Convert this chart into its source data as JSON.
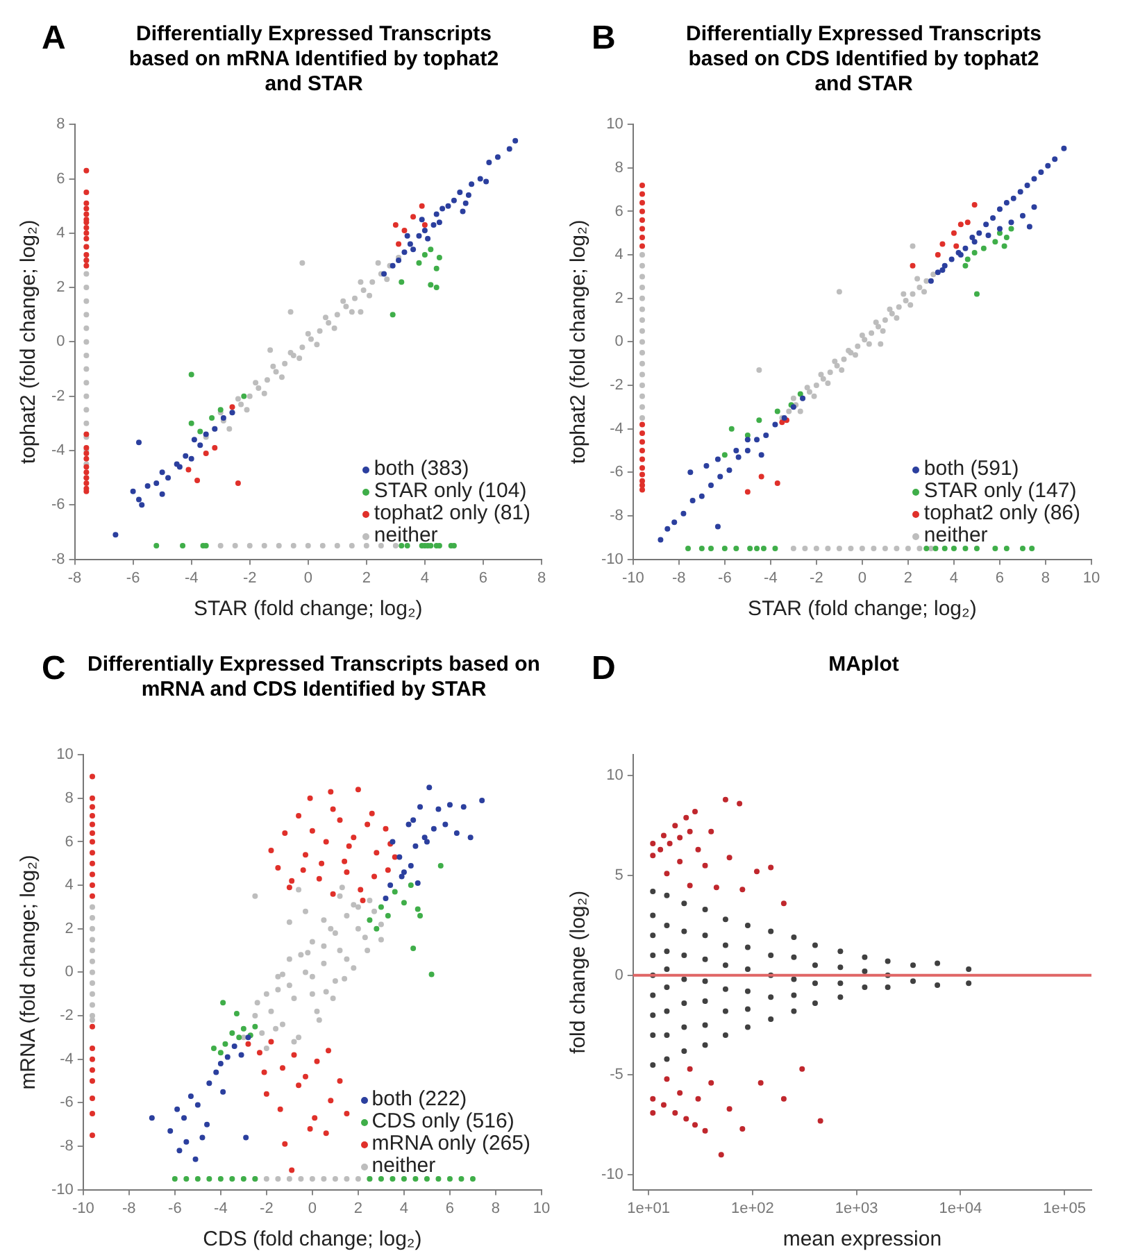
{
  "chart_data": [
    {
      "type": "scatter",
      "title": "Differentially Expressed Transcripts based on mRNA Identified by tophat2 and STAR",
      "xlabel": "STAR (fold change; log₂)",
      "ylabel": "tophat2 (fold change; log₂)",
      "xlim": [
        -8,
        8
      ],
      "ylim": [
        -8,
        8
      ],
      "xticks": [
        -8,
        -6,
        -4,
        -2,
        0,
        2,
        4,
        6,
        8
      ],
      "yticks": [
        -8,
        -6,
        -4,
        -2,
        0,
        2,
        4,
        6,
        8
      ],
      "grid": false,
      "legend": "bottom right",
      "marker": "circle",
      "annotations": [
        "A"
      ],
      "series": [
        {
          "name": "both (383)",
          "color": "#2b3f9e",
          "x": [
            2.6,
            2.9,
            3.1,
            3.3,
            3.5,
            3.6,
            3.8,
            4.0,
            4.1,
            4.3,
            4.5,
            4.6,
            4.8,
            5.0,
            5.2,
            5.4,
            5.6,
            5.9,
            6.2,
            6.5,
            6.9,
            7.1,
            3.4,
            3.9,
            4.4,
            5.5,
            6.1,
            5.3,
            -6.0,
            -5.8,
            -5.5,
            -5.2,
            -5.0,
            -4.8,
            -4.5,
            -4.2,
            -4.0,
            -3.7,
            -3.5,
            -3.2,
            -2.9,
            -2.6,
            -5.7,
            -5.0,
            -4.4,
            -3.9,
            -6.6,
            -5.8
          ],
          "values": [
            2.5,
            2.8,
            3.0,
            3.3,
            3.6,
            3.4,
            3.9,
            4.1,
            3.8,
            4.3,
            4.4,
            4.9,
            5.0,
            5.2,
            5.5,
            5.1,
            5.8,
            6.0,
            6.6,
            6.8,
            7.1,
            7.4,
            3.9,
            4.5,
            4.7,
            5.4,
            5.9,
            4.8,
            -5.5,
            -5.8,
            -5.3,
            -5.2,
            -4.8,
            -5.0,
            -4.5,
            -4.2,
            -4.3,
            -3.8,
            -3.4,
            -3.2,
            -2.8,
            -2.6,
            -6.0,
            -5.6,
            -4.6,
            -3.6,
            -7.1,
            -3.7
          ]
        },
        {
          "name": "STAR only (104)",
          "color": "#3fae49",
          "x": [
            3.8,
            4.0,
            4.2,
            4.4,
            4.5,
            4.2,
            4.4,
            2.9,
            3.2,
            -4.0,
            -3.0,
            -3.7,
            -4.0,
            -3.3,
            -2.2,
            -5.2,
            -4.3,
            -3.6,
            -3.5,
            3.2,
            3.4,
            3.9,
            4.0,
            4.1,
            4.2,
            4.4,
            4.5,
            4.9,
            5.0
          ],
          "values": [
            2.9,
            3.2,
            3.4,
            2.7,
            3.1,
            2.1,
            2.0,
            1.0,
            2.2,
            -1.2,
            -2.5,
            -3.3,
            -3.0,
            -2.8,
            -2.0,
            -7.5,
            -7.5,
            -7.5,
            -7.5,
            -7.5,
            -7.5,
            -7.5,
            -7.5,
            -7.5,
            -7.5,
            -7.5,
            -7.5,
            -7.5,
            -7.5
          ]
        },
        {
          "name": "tophat2 only (81)",
          "color": "#e0302a",
          "x": [
            -7.6,
            -7.6,
            -7.6,
            -7.6,
            -7.6,
            -7.6,
            -7.6,
            -7.6,
            -7.6,
            -7.6,
            -7.6,
            -7.6,
            -7.6,
            -7.6,
            -7.6,
            -7.6,
            -7.6,
            -7.6,
            -7.6,
            -7.6,
            -7.6,
            -7.6,
            -7.6,
            -7.6,
            3.0,
            3.3,
            3.6,
            3.9,
            3.1,
            4.0,
            -3.8,
            -2.4,
            -3.5,
            -4.1,
            -3.2,
            -2.6
          ],
          "values": [
            6.3,
            5.5,
            5.1,
            4.9,
            4.7,
            4.5,
            4.4,
            4.2,
            4.0,
            3.8,
            3.5,
            3.2,
            3.0,
            2.8,
            -3.4,
            -3.9,
            -4.1,
            -4.3,
            -4.6,
            -4.8,
            -5.0,
            -5.2,
            -5.4,
            -5.5,
            4.3,
            4.1,
            4.6,
            5.0,
            3.6,
            4.3,
            -5.1,
            -5.2,
            -4.1,
            -4.7,
            -3.9,
            -2.4
          ]
        },
        {
          "name": "neither",
          "color": "#bdbdbd",
          "x": [
            -7.6,
            -7.6,
            -7.6,
            -7.6,
            -7.6,
            -7.6,
            -7.6,
            -7.6,
            -7.6,
            -7.6,
            -7.6,
            -7.6,
            -7.6,
            -7.6,
            -7.6,
            -7.6,
            -7.6,
            -7.6,
            -3.0,
            -2.5,
            -2.0,
            -1.5,
            -1.0,
            -0.5,
            0.0,
            0.5,
            1.0,
            1.5,
            2.0,
            2.5,
            3.0,
            -3.5,
            -3.2,
            -2.9,
            -2.6,
            -2.3,
            -2.0,
            -1.7,
            -1.4,
            -1.1,
            -0.8,
            -0.5,
            -0.2,
            0.1,
            0.4,
            0.7,
            1.0,
            1.3,
            1.6,
            1.9,
            2.2,
            2.5,
            2.8,
            3.1,
            -3.0,
            -2.4,
            -1.8,
            -1.2,
            -0.6,
            0.0,
            0.6,
            1.2,
            1.8,
            2.4,
            -2.7,
            -2.1,
            -1.5,
            -0.9,
            -0.3,
            0.3,
            0.9,
            1.5,
            2.1,
            2.7,
            -0.2,
            -0.6,
            1.8,
            -1.3
          ],
          "values": [
            -5.0,
            -4.5,
            -4.0,
            -3.5,
            -3.0,
            -2.5,
            -2.0,
            -1.5,
            -1.0,
            -0.5,
            0.0,
            0.5,
            1.0,
            1.5,
            2.0,
            2.5,
            3.0,
            3.5,
            -7.5,
            -7.5,
            -7.5,
            -7.5,
            -7.5,
            -7.5,
            -7.5,
            -7.5,
            -7.5,
            -7.5,
            -7.5,
            -7.5,
            -7.5,
            -3.5,
            -3.2,
            -2.9,
            -2.6,
            -2.3,
            -2.0,
            -1.7,
            -1.4,
            -1.1,
            -0.8,
            -0.5,
            -0.2,
            0.1,
            0.4,
            0.7,
            1.0,
            1.3,
            1.6,
            1.9,
            2.2,
            2.5,
            2.8,
            3.1,
            -2.6,
            -2.1,
            -1.5,
            -0.9,
            -0.4,
            0.3,
            0.9,
            1.5,
            2.2,
            2.9,
            -3.2,
            -2.5,
            -1.9,
            -1.3,
            -0.6,
            -0.1,
            0.5,
            1.1,
            1.7,
            2.3,
            2.9,
            1.1,
            1.1,
            -0.3
          ]
        }
      ]
    },
    {
      "type": "scatter",
      "title": "Differentially Expressed Transcripts based on CDS Identified by tophat2 and STAR",
      "xlabel": "STAR (fold change; log₂)",
      "ylabel": "tophat2 (fold change; log₂)",
      "xlim": [
        -10,
        10
      ],
      "ylim": [
        -10,
        10
      ],
      "xticks": [
        -10,
        -8,
        -6,
        -4,
        -2,
        0,
        2,
        4,
        6,
        8,
        10
      ],
      "yticks": [
        -10,
        -8,
        -6,
        -4,
        -2,
        0,
        2,
        4,
        6,
        8,
        10
      ],
      "grid": false,
      "legend": "bottom right",
      "marker": "circle",
      "annotations": [
        "B"
      ],
      "series": [
        {
          "name": "both (591)",
          "color": "#2b3f9e",
          "x": [
            3.0,
            3.3,
            3.6,
            3.9,
            4.2,
            4.5,
            4.8,
            5.1,
            5.4,
            5.7,
            6.0,
            6.3,
            6.6,
            6.9,
            7.2,
            7.5,
            7.8,
            8.1,
            8.4,
            8.8,
            5.5,
            6.0,
            6.5,
            7.0,
            7.5,
            7.3,
            4.3,
            4.9,
            3.5,
            -8.5,
            -8.2,
            -7.8,
            -7.4,
            -7.0,
            -6.6,
            -6.2,
            -5.8,
            -5.4,
            -5.0,
            -4.6,
            -4.2,
            -3.8,
            -3.4,
            -3.0,
            -2.6,
            -7.5,
            -6.8,
            -6.3,
            -5.5,
            -5.0,
            -4.4,
            -6.3,
            -8.8
          ],
          "values": [
            2.8,
            3.2,
            3.5,
            3.8,
            4.1,
            4.3,
            4.8,
            5.0,
            5.4,
            5.7,
            6.1,
            6.4,
            6.6,
            6.9,
            7.2,
            7.5,
            7.8,
            8.1,
            8.4,
            8.9,
            4.9,
            5.2,
            5.5,
            5.8,
            6.2,
            5.3,
            4.0,
            4.6,
            3.3,
            -8.6,
            -8.3,
            -7.9,
            -7.3,
            -7.1,
            -6.6,
            -6.2,
            -5.9,
            -5.3,
            -5.0,
            -4.5,
            -4.3,
            -3.8,
            -3.5,
            -3.0,
            -2.6,
            -6.0,
            -5.7,
            -5.4,
            -5.0,
            -4.5,
            -5.2,
            -8.5,
            -9.1
          ]
        },
        {
          "name": "STAR only (147)",
          "color": "#3fae49",
          "x": [
            4.6,
            4.9,
            5.3,
            5.8,
            6.0,
            6.3,
            6.5,
            6.2,
            5.0,
            4.5,
            -6.0,
            -5.7,
            -5.0,
            -4.5,
            -3.7,
            -3.1,
            -2.7,
            -7.6,
            -7.0,
            -6.6,
            -6.0,
            -5.5,
            -4.9,
            -4.6,
            -4.3,
            -3.8,
            2.8,
            3.2,
            3.6,
            4.0,
            4.5,
            5.0,
            5.8,
            6.3,
            7.0,
            7.4
          ],
          "values": [
            3.8,
            4.1,
            4.3,
            4.6,
            5.0,
            4.8,
            5.2,
            4.4,
            2.2,
            3.5,
            -5.2,
            -4.0,
            -4.3,
            -3.6,
            -3.2,
            -2.9,
            -2.4,
            -9.5,
            -9.5,
            -9.5,
            -9.5,
            -9.5,
            -9.5,
            -9.5,
            -9.5,
            -9.5,
            -9.5,
            -9.5,
            -9.5,
            -9.5,
            -9.5,
            -9.5,
            -9.5,
            -9.5,
            -9.5,
            -9.5
          ]
        },
        {
          "name": "tophat2 only (86)",
          "color": "#e0302a",
          "x": [
            -9.6,
            -9.6,
            -9.6,
            -9.6,
            -9.6,
            -9.6,
            -9.6,
            -9.6,
            -9.6,
            -9.6,
            -9.6,
            -9.6,
            -9.6,
            -9.6,
            -9.6,
            -9.6,
            -9.6,
            -9.6,
            3.5,
            4.0,
            4.3,
            4.6,
            4.9,
            3.3,
            2.2,
            4.1,
            -4.4,
            -5.0,
            -3.7,
            -3.5,
            -3.3
          ],
          "values": [
            7.2,
            6.8,
            6.4,
            6.0,
            5.6,
            5.2,
            4.8,
            4.4,
            -3.8,
            -4.2,
            -4.6,
            -5.0,
            -5.4,
            -5.8,
            -6.1,
            -6.4,
            -6.6,
            -6.8,
            4.5,
            5.0,
            5.4,
            5.5,
            6.3,
            4.0,
            3.5,
            4.4,
            -6.2,
            -6.9,
            -6.5,
            -3.7,
            -3.6
          ]
        },
        {
          "name": "neither",
          "color": "#bdbdbd",
          "x": [
            -9.6,
            -9.6,
            -9.6,
            -9.6,
            -9.6,
            -9.6,
            -9.6,
            -9.6,
            -9.6,
            -9.6,
            -9.6,
            -9.6,
            -9.6,
            -9.6,
            -9.6,
            -9.6,
            -3.0,
            -2.5,
            -2.0,
            -1.5,
            -1.0,
            -0.5,
            0.0,
            0.5,
            1.0,
            1.5,
            2.0,
            2.5,
            3.0,
            -3.5,
            -3.2,
            -2.9,
            -2.6,
            -2.3,
            -2.0,
            -1.7,
            -1.4,
            -1.1,
            -0.8,
            -0.5,
            -0.2,
            0.1,
            0.4,
            0.7,
            1.0,
            1.3,
            1.6,
            1.9,
            2.2,
            2.5,
            2.8,
            3.1,
            -3.0,
            -2.4,
            -1.8,
            -1.2,
            -0.6,
            0.0,
            0.6,
            1.2,
            1.8,
            2.4,
            -2.7,
            -2.1,
            -1.5,
            -0.9,
            -0.3,
            0.3,
            0.9,
            1.5,
            2.1,
            2.7,
            -4.5,
            2.2,
            0.8,
            -1.0
          ],
          "values": [
            -3.5,
            -3.0,
            -2.5,
            -2.0,
            -1.5,
            -1.0,
            -0.5,
            0.0,
            0.5,
            1.0,
            1.5,
            2.0,
            2.5,
            3.0,
            3.5,
            4.0,
            -9.5,
            -9.5,
            -9.5,
            -9.5,
            -9.5,
            -9.5,
            -9.5,
            -9.5,
            -9.5,
            -9.5,
            -9.5,
            -9.5,
            -9.5,
            -3.5,
            -3.2,
            -2.9,
            -2.6,
            -2.3,
            -2.0,
            -1.7,
            -1.4,
            -1.1,
            -0.8,
            -0.5,
            -0.2,
            0.1,
            0.4,
            0.7,
            1.0,
            1.3,
            1.6,
            1.9,
            2.2,
            2.5,
            2.8,
            3.1,
            -2.6,
            -2.1,
            -1.5,
            -0.9,
            -0.4,
            0.3,
            0.9,
            1.5,
            2.2,
            2.9,
            -3.2,
            -2.5,
            -1.9,
            -1.3,
            -0.6,
            -0.1,
            0.5,
            1.1,
            1.7,
            2.3,
            -1.3,
            4.4,
            -0.1,
            2.3
          ]
        }
      ]
    },
    {
      "type": "scatter",
      "title": "Differentially Expressed Transcripts based on mRNA and CDS Identified by STAR",
      "xlabel": "CDS (fold change; log₂)",
      "ylabel": "mRNA (fold change; log₂)",
      "xlim": [
        -10,
        10
      ],
      "ylim": [
        -10,
        10
      ],
      "xticks": [
        -10,
        -8,
        -6,
        -4,
        -2,
        0,
        2,
        4,
        6,
        8,
        10
      ],
      "yticks": [
        -10,
        -8,
        -6,
        -4,
        -2,
        0,
        2,
        4,
        6,
        8,
        10
      ],
      "grid": false,
      "legend": "bottom right",
      "marker": "circle",
      "annotations": [
        "C"
      ],
      "series": [
        {
          "name": "both (222)",
          "color": "#2b3f9e",
          "x": [
            3.5,
            3.8,
            4.0,
            4.2,
            4.4,
            4.5,
            4.7,
            4.9,
            5.1,
            5.3,
            5.5,
            5.8,
            6.0,
            6.3,
            6.6,
            6.9,
            7.4,
            4.3,
            4.6,
            5.0,
            3.2,
            3.4,
            3.9,
            -7.0,
            -6.2,
            -5.9,
            -5.6,
            -5.3,
            -5.0,
            -4.8,
            -4.5,
            -4.2,
            -4.0,
            -3.7,
            -3.4,
            -3.1,
            -2.8,
            -5.5,
            -5.1,
            -4.6,
            -3.9,
            -2.9,
            -5.8
          ],
          "values": [
            6.0,
            5.3,
            4.6,
            6.8,
            7.0,
            5.8,
            7.6,
            6.2,
            8.5,
            6.6,
            7.5,
            6.8,
            7.7,
            6.4,
            7.6,
            6.2,
            7.9,
            4.9,
            4.1,
            6.0,
            3.4,
            4.0,
            4.4,
            -6.7,
            -7.3,
            -6.3,
            -6.7,
            -5.7,
            -6.1,
            -7.6,
            -5.1,
            -4.6,
            -4.2,
            -3.9,
            -3.4,
            -3.8,
            -3.0,
            -7.8,
            -8.6,
            -7.0,
            -5.5,
            -7.6,
            -8.2
          ]
        },
        {
          "name": "CDS only (516)",
          "color": "#3fae49",
          "x": [
            -4.3,
            -4.0,
            -3.8,
            -3.5,
            -3.2,
            -3.0,
            -2.7,
            -2.5,
            -3.9,
            -3.3,
            2.5,
            2.8,
            3.0,
            3.3,
            3.6,
            4.0,
            4.3,
            4.6,
            4.4,
            5.2,
            4.7,
            5.6,
            -6.0,
            -5.5,
            -5.0,
            -4.5,
            -4.0,
            -3.5,
            -3.0,
            -2.5,
            2.5,
            3.0,
            3.5,
            4.0,
            4.5,
            5.0,
            5.5,
            6.0,
            6.5,
            7.0
          ],
          "values": [
            -3.5,
            -3.7,
            -3.3,
            -2.8,
            -3.0,
            -2.6,
            -2.9,
            -2.5,
            -1.4,
            -1.9,
            2.4,
            2.0,
            3.0,
            2.6,
            3.7,
            3.2,
            4.0,
            2.9,
            1.1,
            -0.1,
            2.6,
            4.9,
            -9.5,
            -9.5,
            -9.5,
            -9.5,
            -9.5,
            -9.5,
            -9.5,
            -9.5,
            -9.5,
            -9.5,
            -9.5,
            -9.5,
            -9.5,
            -9.5,
            -9.5,
            -9.5,
            -9.5,
            -9.5
          ]
        },
        {
          "name": "mRNA only (265)",
          "color": "#e0302a",
          "x": [
            -9.6,
            -9.6,
            -9.6,
            -9.6,
            -9.6,
            -9.6,
            -9.6,
            -9.6,
            -9.6,
            -9.6,
            -9.6,
            -9.6,
            -9.6,
            -9.6,
            -9.6,
            -9.6,
            -9.6,
            -9.6,
            -9.6,
            -9.6,
            -1.8,
            -1.2,
            -0.6,
            0.0,
            0.4,
            0.8,
            1.2,
            1.6,
            2.0,
            2.4,
            2.8,
            3.2,
            3.6,
            -1.5,
            -0.9,
            -0.3,
            0.3,
            0.9,
            1.5,
            2.1,
            2.7,
            3.3,
            -0.1,
            0.9,
            1.8,
            2.6,
            3.4,
            -1.0,
            -0.4,
            0.6,
            1.4,
            2.2,
            -2.8,
            -2.3,
            -1.8,
            -1.3,
            -0.8,
            -0.3,
            0.2,
            0.7,
            1.2,
            -2.0,
            -1.4,
            -0.6,
            0.1,
            0.8,
            1.5,
            -1.2,
            -0.1,
            0.6,
            -2.1,
            -0.9
          ],
          "values": [
            9.0,
            8.0,
            7.6,
            7.2,
            6.8,
            6.4,
            6.0,
            5.5,
            5.0,
            4.5,
            4.0,
            3.5,
            -2.5,
            -3.5,
            -4.0,
            -4.5,
            -5.0,
            -5.8,
            -6.5,
            -7.5,
            5.6,
            6.4,
            7.2,
            6.5,
            5.0,
            8.3,
            7.0,
            5.8,
            8.4,
            6.8,
            5.5,
            6.6,
            5.3,
            4.8,
            4.2,
            5.4,
            4.3,
            3.6,
            4.6,
            3.8,
            4.4,
            4.7,
            8.0,
            7.5,
            6.2,
            7.3,
            5.9,
            3.9,
            4.7,
            6.0,
            5.1,
            3.3,
            -3.3,
            -3.7,
            -3.2,
            -4.4,
            -3.8,
            -4.8,
            -4.1,
            -3.6,
            -5.0,
            -5.6,
            -6.3,
            -5.2,
            -6.7,
            -5.9,
            -6.5,
            -7.9,
            -7.2,
            -7.4,
            -4.6,
            -9.1
          ]
        },
        {
          "name": "neither",
          "color": "#bdbdbd",
          "x": [
            -9.6,
            -9.6,
            -9.6,
            -9.6,
            -9.6,
            -9.6,
            -9.6,
            -9.6,
            -9.6,
            -9.6,
            -9.6,
            -9.6,
            -2.5,
            -2.0,
            -1.5,
            -1.0,
            -0.5,
            0.0,
            0.5,
            1.0,
            1.5,
            2.0,
            2.5,
            -3.0,
            -2.5,
            -2.2,
            -2.0,
            -1.8,
            -1.5,
            -1.3,
            -1.0,
            -0.8,
            -0.6,
            -0.3,
            0.0,
            0.0,
            0.3,
            0.5,
            0.8,
            1.0,
            1.2,
            1.5,
            1.8,
            2.0,
            2.3,
            2.5,
            3.0,
            -2.0,
            -1.5,
            -1.0,
            -0.5,
            0.0,
            0.5,
            1.0,
            1.5,
            2.0,
            -1.0,
            -0.3,
            0.5,
            1.2,
            1.8,
            2.4,
            -2.4,
            -1.6,
            -0.8,
            0.2,
            0.9,
            -1.3,
            -0.2,
            0.6,
            1.4,
            2.7,
            -2.5,
            3.0,
            1.3,
            -0.6
          ],
          "values": [
            -2.2,
            -2.0,
            -1.5,
            -1.0,
            -0.5,
            0.0,
            0.5,
            1.0,
            1.5,
            2.0,
            2.5,
            3.0,
            -9.5,
            -9.5,
            -9.5,
            -9.5,
            -9.5,
            -9.5,
            -9.5,
            -9.5,
            -9.5,
            -9.5,
            -9.5,
            -3.0,
            -2.0,
            -2.8,
            -1.0,
            -1.8,
            -0.2,
            -2.4,
            0.6,
            -1.2,
            -3.0,
            0.0,
            1.4,
            -1.0,
            -2.2,
            0.4,
            2.0,
            -0.4,
            1.0,
            2.6,
            0.2,
            3.0,
            1.6,
            3.3,
            2.2,
            -3.5,
            -0.8,
            -0.6,
            0.8,
            -0.2,
            1.2,
            1.8,
            0.6,
            2.0,
            2.3,
            2.8,
            2.4,
            3.5,
            3.1,
            1.0,
            -1.4,
            -2.6,
            -3.2,
            -1.8,
            -1.2,
            -0.1,
            0.9,
            -0.9,
            -0.3,
            2.8,
            3.5,
            1.5,
            3.9,
            3.8
          ]
        }
      ]
    },
    {
      "type": "scatter",
      "title": "MAplot",
      "xlabel": "mean expression",
      "ylabel": "fold change (log₂)",
      "log": "x",
      "xlim": [
        7.1,
        182000
      ],
      "ylim": [
        -10.75,
        11.05
      ],
      "xticks": [
        {
          "value": 10,
          "label": "1e+01"
        },
        {
          "value": 100,
          "label": "1e+02"
        },
        {
          "value": 1000,
          "label": "1e+03"
        },
        {
          "value": 10000,
          "label": "1e+04"
        },
        {
          "value": 100000,
          "label": "1e+05"
        }
      ],
      "yticks": [
        -10,
        -5,
        0,
        5,
        10
      ],
      "grid": false,
      "marker": "circle",
      "annotations": [
        "D"
      ],
      "ref_lines": [
        {
          "axis": "y",
          "value": 0,
          "color": "#e06666"
        }
      ],
      "series": [
        {
          "color": "#c0272d",
          "x": [
            11,
            13,
            16,
            20,
            25,
            11,
            14,
            18,
            23,
            28,
            15,
            20,
            25,
            30,
            35,
            40,
            45,
            55,
            60,
            75,
            80,
            110,
            150,
            200,
            11,
            14,
            18,
            23,
            28,
            11,
            15,
            20,
            25,
            30,
            35,
            40,
            50,
            60,
            80,
            120,
            200,
            450,
            300
          ],
          "values": [
            6.0,
            6.3,
            6.6,
            6.9,
            7.2,
            6.6,
            7.0,
            7.5,
            7.9,
            8.2,
            5.1,
            5.7,
            4.5,
            6.3,
            5.5,
            7.2,
            4.4,
            8.8,
            5.9,
            8.6,
            4.3,
            5.2,
            5.4,
            3.6,
            -6.2,
            -6.5,
            -6.9,
            -7.2,
            -7.5,
            -6.9,
            -5.2,
            -5.9,
            -4.7,
            -6.2,
            -7.8,
            -5.4,
            -9.0,
            -6.7,
            -7.7,
            -5.4,
            -6.2,
            -7.3,
            -4.7
          ]
        },
        {
          "color": "#404040",
          "x": [
            11,
            11,
            11,
            11,
            11,
            11,
            11,
            11,
            11,
            15,
            15,
            15,
            15,
            15,
            15,
            15,
            15,
            22,
            22,
            22,
            22,
            22,
            22,
            22,
            35,
            35,
            35,
            35,
            35,
            35,
            35,
            55,
            55,
            55,
            55,
            55,
            55,
            90,
            90,
            90,
            90,
            90,
            90,
            150,
            150,
            150,
            150,
            150,
            250,
            250,
            250,
            250,
            250,
            400,
            400,
            400,
            400,
            700,
            700,
            700,
            700,
            1200,
            1200,
            1200,
            2000,
            2000,
            2000,
            3500,
            3500,
            6000,
            6000,
            12000,
            12000
          ],
          "values": [
            4.2,
            3,
            2,
            1,
            0,
            -1,
            -2,
            -3,
            -4.5,
            4,
            2.5,
            1.2,
            0.3,
            -0.6,
            -1.8,
            -3,
            -4.2,
            3.6,
            2.2,
            1,
            -0.2,
            -1.4,
            -2.6,
            -3.8,
            3.3,
            2,
            0.8,
            -0.3,
            -1.3,
            -2.5,
            -3.5,
            2.8,
            1.5,
            0.5,
            -0.7,
            -1.8,
            -3,
            2.5,
            1.4,
            0.3,
            -0.8,
            -1.7,
            -2.6,
            2.2,
            1,
            0,
            -1.1,
            -2.2,
            1.9,
            0.9,
            -0.2,
            -1,
            -1.8,
            1.5,
            0.5,
            -0.4,
            -1.4,
            1.2,
            0.4,
            -0.4,
            -1.1,
            0.9,
            0.2,
            -0.6,
            0.7,
            0,
            -0.6,
            0.5,
            -0.3,
            0.6,
            -0.5,
            0.3,
            -0.4
          ]
        }
      ]
    }
  ]
}
